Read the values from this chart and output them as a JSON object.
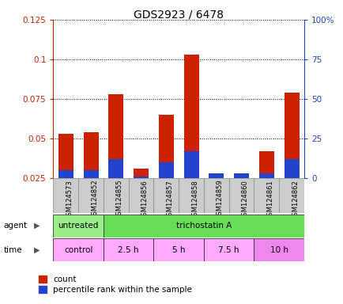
{
  "title": "GDS2923 / 6478",
  "samples": [
    "GSM124573",
    "GSM124852",
    "GSM124855",
    "GSM124856",
    "GSM124857",
    "GSM124858",
    "GSM124859",
    "GSM124860",
    "GSM124861",
    "GSM124862"
  ],
  "red_values": [
    0.053,
    0.054,
    0.078,
    0.031,
    0.065,
    0.103,
    0.0,
    0.0,
    0.042,
    0.079
  ],
  "blue_values": [
    0.03,
    0.03,
    0.037,
    0.026,
    0.035,
    0.042,
    0.028,
    0.028,
    0.028,
    0.037
  ],
  "ylim_left": [
    0.025,
    0.125
  ],
  "ylim_right": [
    0,
    100
  ],
  "yticks_left": [
    0.025,
    0.05,
    0.075,
    0.1,
    0.125
  ],
  "yticks_right": [
    0,
    25,
    50,
    75,
    100
  ],
  "ytick_labels_left": [
    "0.025",
    "0.05",
    "0.075",
    "0.1",
    "0.125"
  ],
  "ytick_labels_right": [
    "0",
    "25",
    "50",
    "75",
    "100%"
  ],
  "agent_labels": [
    {
      "text": "untreated",
      "start": 0,
      "end": 2
    },
    {
      "text": "trichostatin A",
      "start": 2,
      "end": 10
    }
  ],
  "agent_colors": [
    "#99ee88",
    "#66dd55"
  ],
  "time_labels": [
    {
      "text": "control",
      "start": 0,
      "end": 2
    },
    {
      "text": "2.5 h",
      "start": 2,
      "end": 4
    },
    {
      "text": "5 h",
      "start": 4,
      "end": 6
    },
    {
      "text": "7.5 h",
      "start": 6,
      "end": 8
    },
    {
      "text": "10 h",
      "start": 8,
      "end": 10
    }
  ],
  "time_colors": [
    "#ffaaff",
    "#ffaaff",
    "#ffaaff",
    "#ffaaff",
    "#ee88ee"
  ],
  "red_color": "#cc2200",
  "blue_color": "#2244cc",
  "left_axis_color": "#cc2200",
  "right_axis_color": "#2244cc",
  "legend_red": "count",
  "legend_blue": "percentile rank within the sample",
  "bar_width": 0.6,
  "tick_gray": "#cccccc"
}
